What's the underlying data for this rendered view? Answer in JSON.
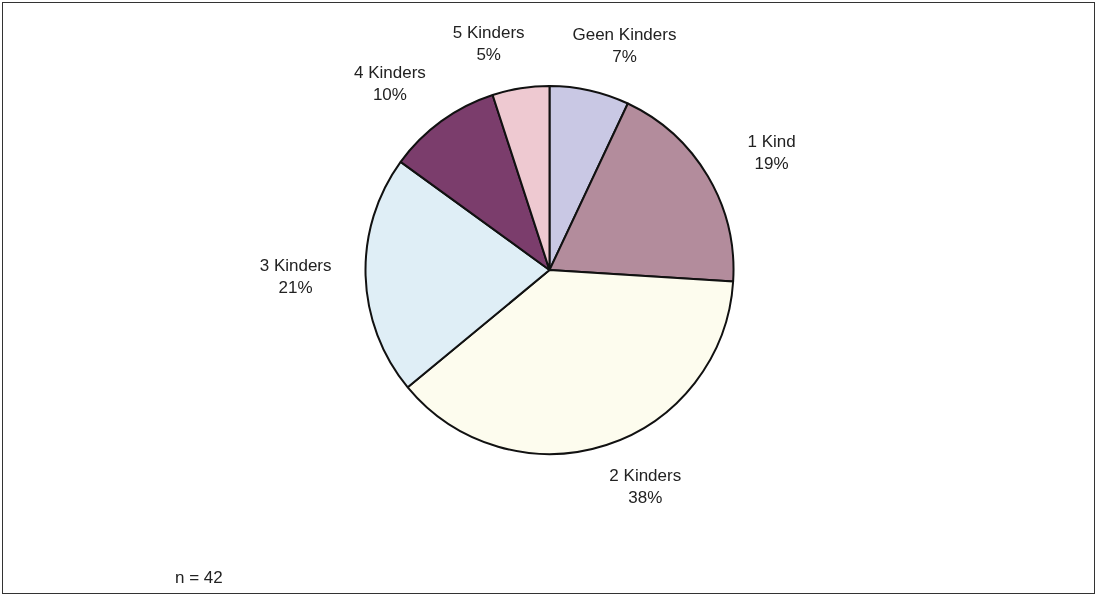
{
  "chart_data": {
    "type": "pie",
    "categories": [
      "Geen Kinders",
      "1 Kind",
      "2 Kinders",
      "3 Kinders",
      "4 Kinders",
      "5 Kinders"
    ],
    "values": [
      7,
      19,
      38,
      21,
      10,
      5
    ],
    "colors": [
      "#c9c8e4",
      "#b38c9c",
      "#fdfcee",
      "#dfeef6",
      "#7b3d6c",
      "#eec9d1"
    ],
    "value_labels": [
      "7%",
      "19%",
      "38%",
      "21%",
      "10%",
      "5%"
    ],
    "legend": false,
    "annotations": [
      "n = 42"
    ]
  }
}
